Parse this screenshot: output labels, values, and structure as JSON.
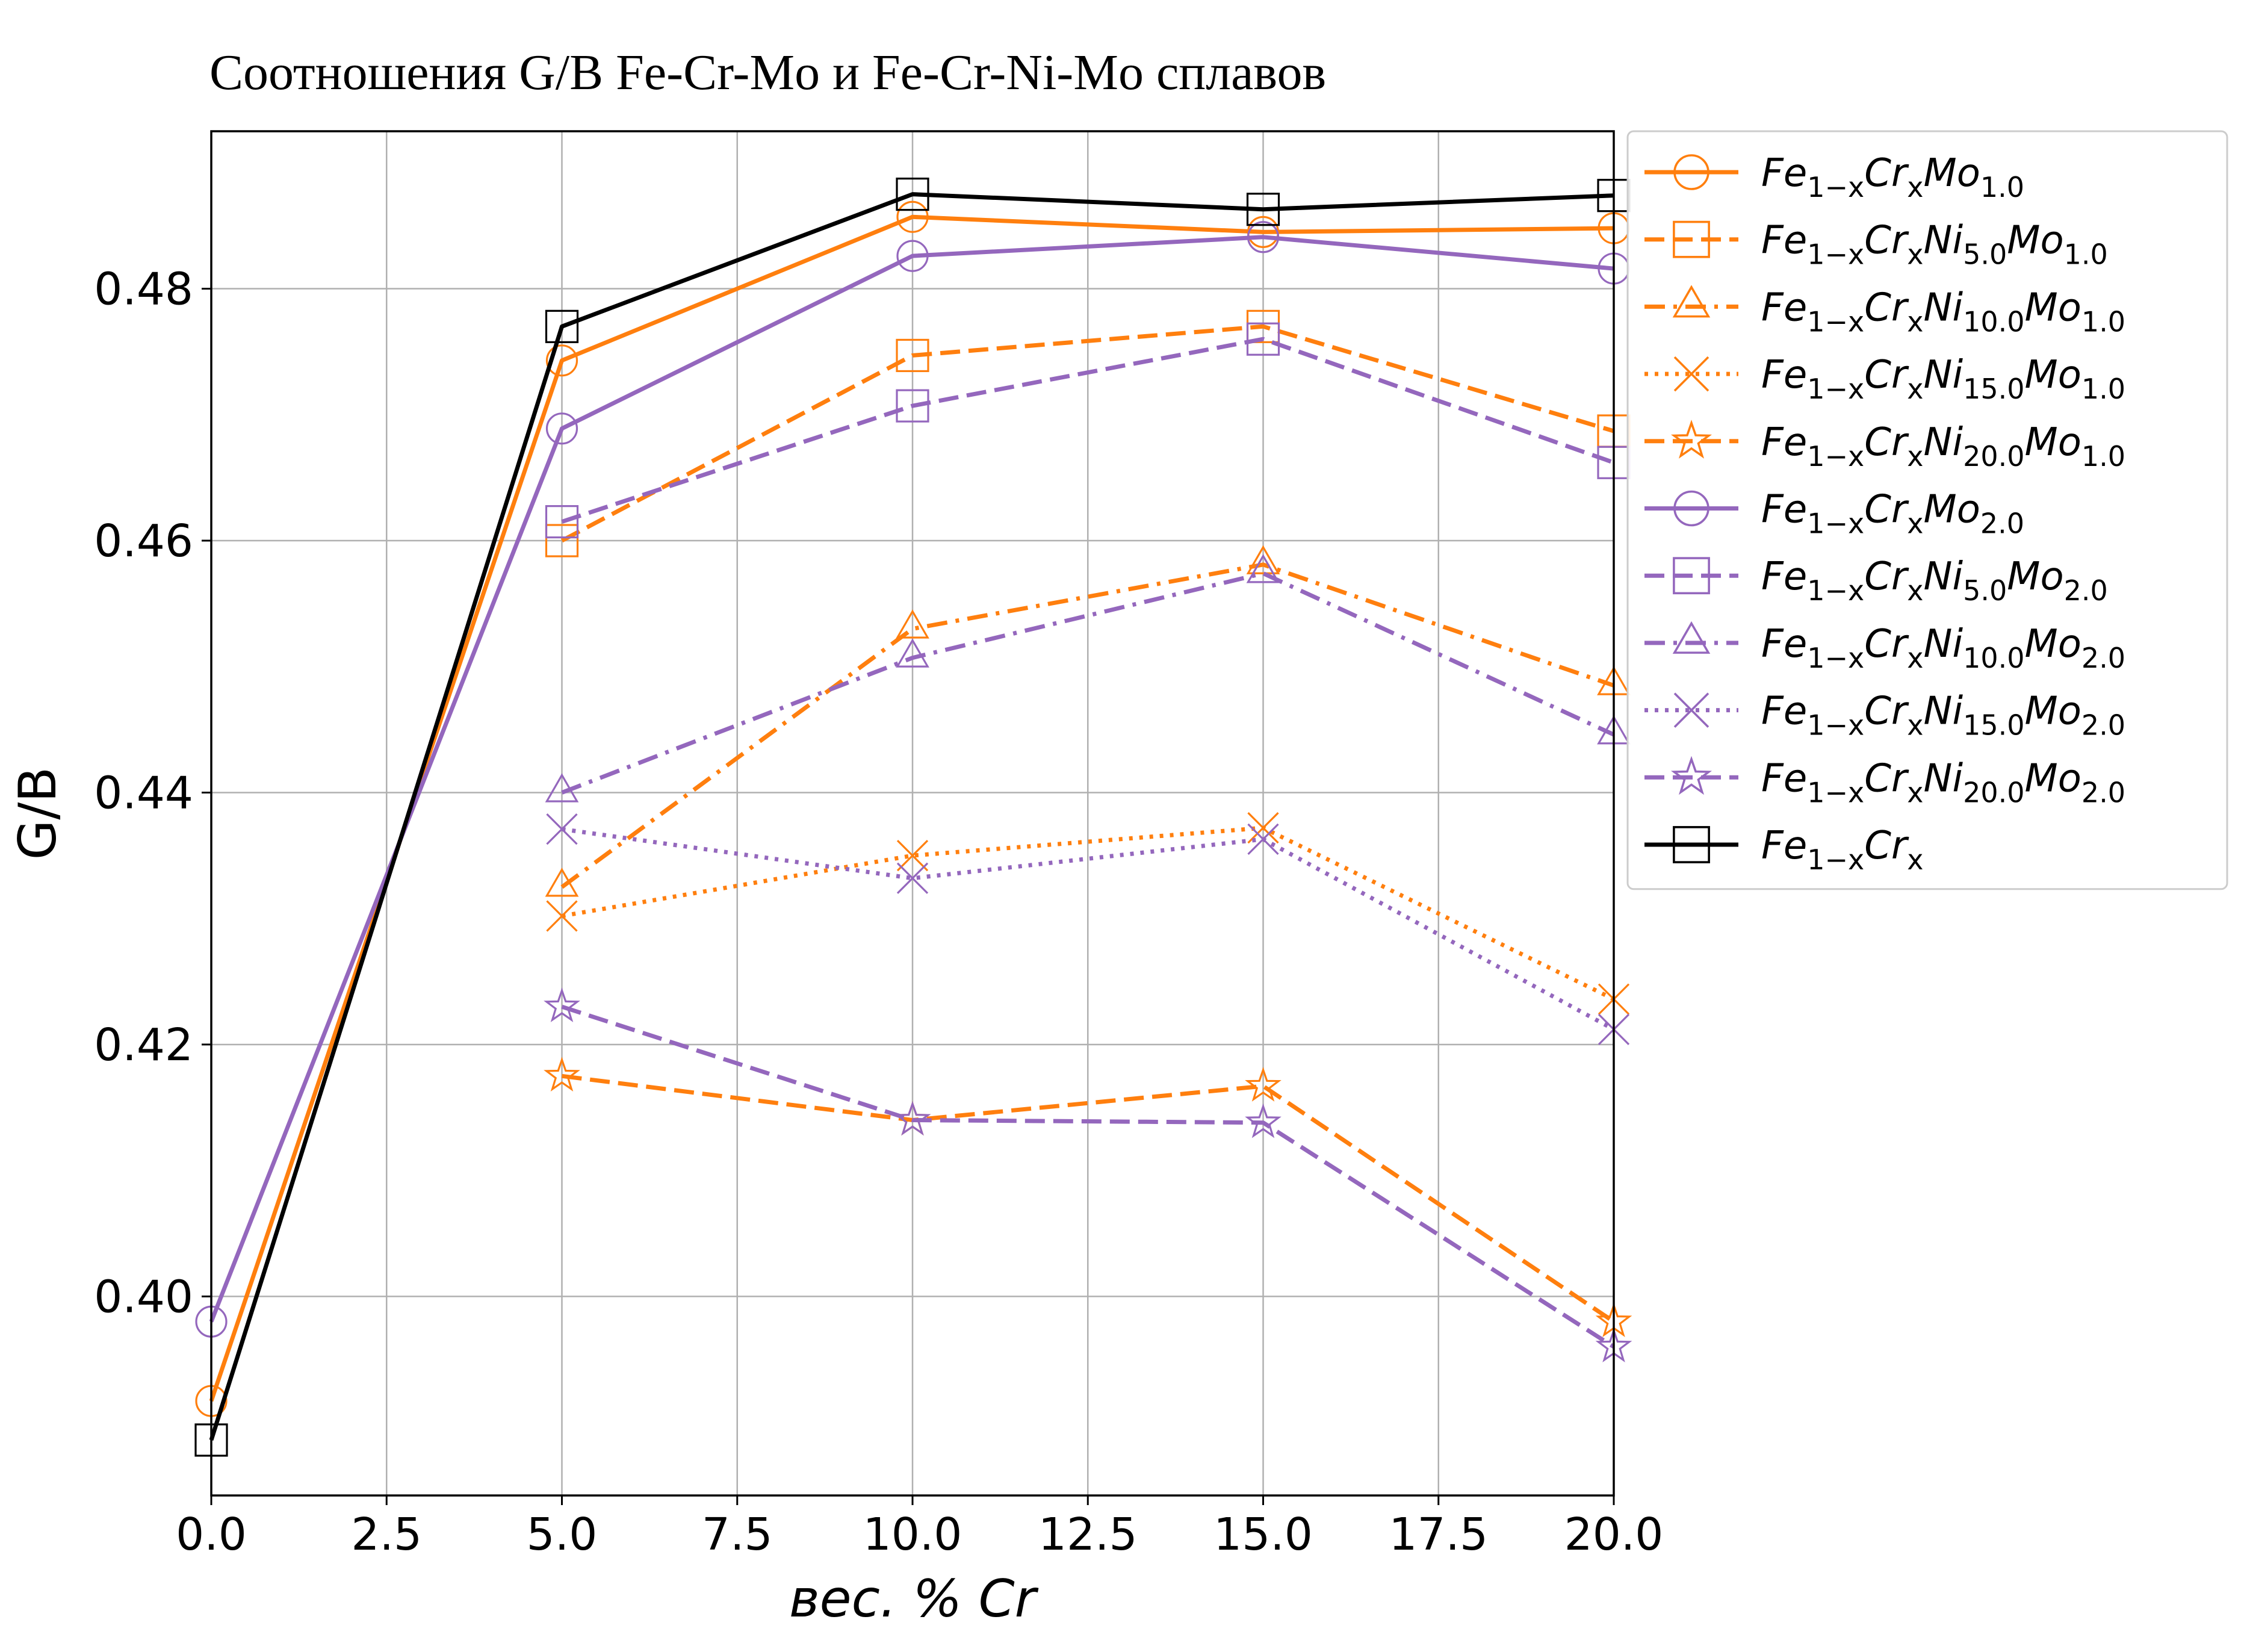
{
  "chart_data": {
    "type": "line",
    "title": "Соотношения G/B Fe-Cr-Mo и Fe-Cr-Ni-Mo сплавов",
    "xlabel": "вес. % Cr",
    "ylabel": "G/B",
    "xlim": [
      0,
      20
    ],
    "ylim": [
      0.3842,
      0.4925
    ],
    "xticks": [
      0,
      2.5,
      5,
      7.5,
      10,
      12.5,
      15,
      17.5,
      20
    ],
    "xtick_labels": [
      "0.0",
      "2.5",
      "5.0",
      "7.5",
      "10.0",
      "12.5",
      "15.0",
      "17.5",
      "20.0"
    ],
    "yticks": [
      0.4,
      0.42,
      0.44,
      0.46,
      0.48
    ],
    "ytick_labels": [
      "0.40",
      "0.42",
      "0.44",
      "0.46",
      "0.48"
    ],
    "grid": true,
    "legend_position": "outside-right-top",
    "colors": {
      "orange": "#ff7f0e",
      "purple": "#9467bd",
      "black": "#000000",
      "grid": "#b0b0b0"
    },
    "series": [
      {
        "base": "Fe",
        "base_sub": "1−x",
        "cr": "Cr",
        "cr_sub": "x",
        "ni_sub": "",
        "mo_sub": "1.0",
        "color": "#ff7f0e",
        "dash": "solid",
        "marker": "circle",
        "x": [
          0,
          5,
          10,
          15,
          20
        ],
        "y": [
          0.3917,
          0.4743,
          0.4857,
          0.4845,
          0.4848
        ]
      },
      {
        "base": "Fe",
        "base_sub": "1−x",
        "cr": "Cr",
        "cr_sub": "x",
        "ni_sub": "5.0",
        "mo_sub": "1.0",
        "color": "#ff7f0e",
        "dash": "dashed",
        "marker": "square",
        "x": [
          5,
          10,
          15,
          20
        ],
        "y": [
          0.46,
          0.4747,
          0.477,
          0.4687
        ]
      },
      {
        "base": "Fe",
        "base_sub": "1−x",
        "cr": "Cr",
        "cr_sub": "x",
        "ni_sub": "10.0",
        "mo_sub": "1.0",
        "color": "#ff7f0e",
        "dash": "dashdot",
        "marker": "triangle",
        "x": [
          5,
          10,
          15,
          20
        ],
        "y": [
          0.4325,
          0.453,
          0.4581,
          0.4485
        ]
      },
      {
        "base": "Fe",
        "base_sub": "1−x",
        "cr": "Cr",
        "cr_sub": "x",
        "ni_sub": "15.0",
        "mo_sub": "1.0",
        "color": "#ff7f0e",
        "dash": "dotted",
        "marker": "x",
        "x": [
          5,
          10,
          15,
          20
        ],
        "y": [
          0.4302,
          0.435,
          0.4372,
          0.4236
        ]
      },
      {
        "base": "Fe",
        "base_sub": "1−x",
        "cr": "Cr",
        "cr_sub": "x",
        "ni_sub": "20.0",
        "mo_sub": "1.0",
        "color": "#ff7f0e",
        "dash": "dashed",
        "marker": "star",
        "x": [
          5,
          10,
          15,
          20
        ],
        "y": [
          0.4175,
          0.414,
          0.4167,
          0.398
        ]
      },
      {
        "base": "Fe",
        "base_sub": "1−x",
        "cr": "Cr",
        "cr_sub": "x",
        "ni_sub": "",
        "mo_sub": "2.0",
        "color": "#9467bd",
        "dash": "solid",
        "marker": "circle",
        "x": [
          0,
          5,
          10,
          15,
          20
        ],
        "y": [
          0.398,
          0.4689,
          0.4826,
          0.4841,
          0.4816
        ]
      },
      {
        "base": "Fe",
        "base_sub": "1−x",
        "cr": "Cr",
        "cr_sub": "x",
        "ni_sub": "5.0",
        "mo_sub": "2.0",
        "color": "#9467bd",
        "dash": "dashed",
        "marker": "square",
        "x": [
          5,
          10,
          15,
          20
        ],
        "y": [
          0.4615,
          0.4707,
          0.476,
          0.4662
        ]
      },
      {
        "base": "Fe",
        "base_sub": "1−x",
        "cr": "Cr",
        "cr_sub": "x",
        "ni_sub": "10.0",
        "mo_sub": "2.0",
        "color": "#9467bd",
        "dash": "dashdot",
        "marker": "triangle",
        "x": [
          5,
          10,
          15,
          20
        ],
        "y": [
          0.44,
          0.4507,
          0.4574,
          0.4446
        ]
      },
      {
        "base": "Fe",
        "base_sub": "1−x",
        "cr": "Cr",
        "cr_sub": "x",
        "ni_sub": "15.0",
        "mo_sub": "2.0",
        "color": "#9467bd",
        "dash": "dotted",
        "marker": "x",
        "x": [
          5,
          10,
          15,
          20
        ],
        "y": [
          0.4371,
          0.4332,
          0.4363,
          0.4212
        ]
      },
      {
        "base": "Fe",
        "base_sub": "1−x",
        "cr": "Cr",
        "cr_sub": "x",
        "ni_sub": "20.0",
        "mo_sub": "2.0",
        "color": "#9467bd",
        "dash": "dashed",
        "marker": "star",
        "x": [
          5,
          10,
          15,
          20
        ],
        "y": [
          0.423,
          0.414,
          0.4138,
          0.396
        ]
      },
      {
        "base": "Fe",
        "base_sub": "1−x",
        "cr": "Cr",
        "cr_sub": "x",
        "ni_sub": "",
        "mo_sub": "",
        "color": "#000000",
        "dash": "solid",
        "marker": "square",
        "x": [
          0,
          5,
          10,
          15,
          20
        ],
        "y": [
          0.3886,
          0.477,
          0.4875,
          0.4863,
          0.4874
        ]
      }
    ]
  }
}
